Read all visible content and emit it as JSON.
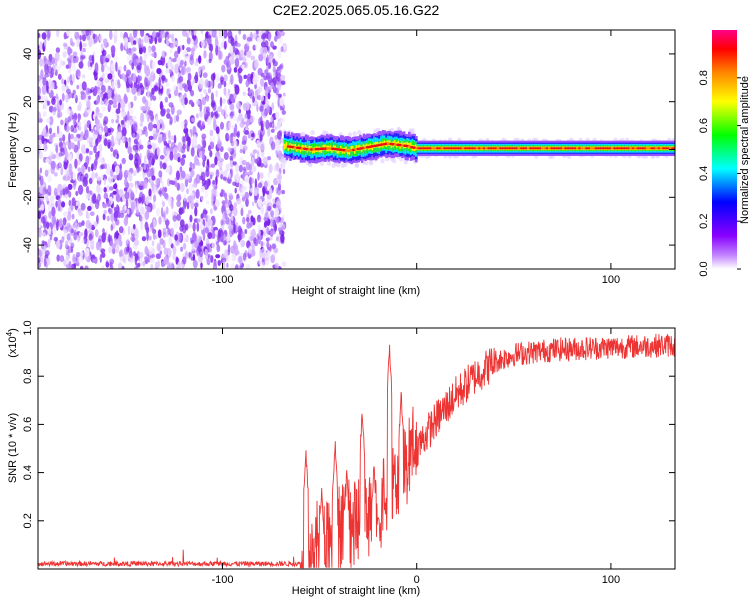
{
  "title": "C2E2.2025.065.05.16.G22",
  "chart_data": [
    {
      "type": "heatmap",
      "name": "spectrogram",
      "xlabel": "Height of straight line (km)",
      "ylabel": "Frequency (Hz)",
      "xlim": [
        -195,
        133
      ],
      "ylim": [
        -50,
        50
      ],
      "xticks": [
        -100,
        0,
        100
      ],
      "xtick_labels": [
        "-100",
        "",
        "100"
      ],
      "yticks": [
        -40,
        -20,
        0,
        20,
        40
      ],
      "ytick_labels": [
        "-40",
        "-20",
        "0",
        "20",
        "40"
      ],
      "noise_region_x": [
        -195,
        -68
      ],
      "signal_track": [
        {
          "x": -68,
          "y": 1.5
        },
        {
          "x": -55,
          "y": 0
        },
        {
          "x": -45,
          "y": 0.5
        },
        {
          "x": -35,
          "y": -0.5
        },
        {
          "x": -25,
          "y": 1
        },
        {
          "x": -15,
          "y": 2.5
        },
        {
          "x": -5,
          "y": 1.5
        },
        {
          "x": 0,
          "y": 0.5
        },
        {
          "x": 133,
          "y": 0.5
        }
      ],
      "colorbar": {
        "label": "Normalized spectral amplitude",
        "ticks": [
          0.0,
          0.2,
          0.4,
          0.6,
          0.8
        ],
        "tick_labels": [
          "0.0",
          "0.2",
          "0.4",
          "0.6",
          "0.8"
        ],
        "colors": [
          "#ffffff",
          "#8800ff",
          "#0000ff",
          "#00ffff",
          "#00ff00",
          "#ffff00",
          "#ff8800",
          "#ff0000",
          "#ff0088"
        ]
      }
    },
    {
      "type": "line",
      "name": "snr",
      "xlabel": "Height of straight line (km)",
      "ylabel": "SNR (10 * v/v)",
      "scale_label": "(x10",
      "scale_exp": "4",
      "scale_close": ")",
      "color": "#ee3333",
      "xlim": [
        -195,
        133
      ],
      "ylim": [
        0,
        1.0
      ],
      "xticks": [
        -100,
        0,
        100
      ],
      "xtick_labels": [
        "-100",
        "0",
        "100"
      ],
      "yticks": [
        0.2,
        0.4,
        0.6,
        0.8,
        1.0
      ],
      "ytick_labels": [
        "0.2",
        "0.4",
        "0.6",
        "0.8",
        "1.0"
      ],
      "baseline": {
        "x": [
          -195,
          -60
        ],
        "y": 0.02
      },
      "rise": [
        {
          "x": -60,
          "y": 0.03
        },
        {
          "x": -50,
          "y": 0.12
        },
        {
          "x": -40,
          "y": 0.18
        },
        {
          "x": -30,
          "y": 0.22
        },
        {
          "x": -20,
          "y": 0.3
        },
        {
          "x": -10,
          "y": 0.38
        },
        {
          "x": 0,
          "y": 0.5
        },
        {
          "x": 10,
          "y": 0.62
        },
        {
          "x": 20,
          "y": 0.72
        },
        {
          "x": 30,
          "y": 0.8
        },
        {
          "x": 40,
          "y": 0.86
        },
        {
          "x": 50,
          "y": 0.89
        },
        {
          "x": 70,
          "y": 0.91
        },
        {
          "x": 100,
          "y": 0.92
        },
        {
          "x": 133,
          "y": 0.93
        }
      ],
      "spikes": [
        {
          "x": -57,
          "y": 0.5
        },
        {
          "x": -49,
          "y": 0.35
        },
        {
          "x": -42,
          "y": 0.55
        },
        {
          "x": -36,
          "y": 0.42
        },
        {
          "x": -28,
          "y": 0.68
        },
        {
          "x": -22,
          "y": 0.45
        },
        {
          "x": -14,
          "y": 0.94
        },
        {
          "x": -8,
          "y": 0.75
        }
      ]
    }
  ]
}
